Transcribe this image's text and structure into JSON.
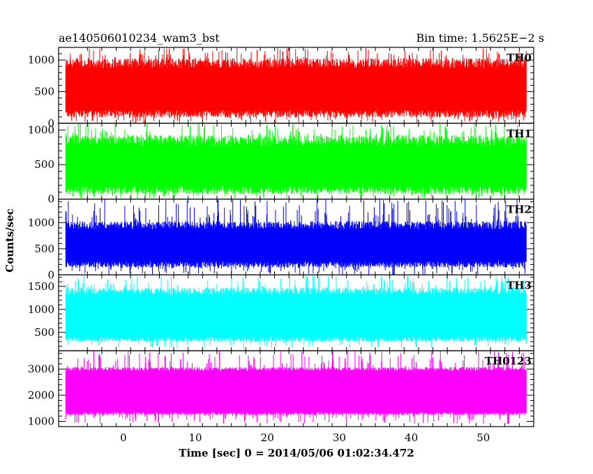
{
  "header": {
    "title": "ae140506010234_wam3_bst",
    "bin_time": "Bin time: 1.5625E−2 s"
  },
  "chart_data": {
    "type": "line",
    "title": "ae140506010234_wam3_bst",
    "subtitle": "Bin time: 1.5625E−2 s",
    "xlabel": "Time [sec] 0 = 2014/05/06 01:02:34.472",
    "ylabel": "Counts/sec",
    "xlim": [
      -9,
      57
    ],
    "x_data_range": [
      -8,
      56
    ],
    "x_ticks": [
      0,
      10,
      20,
      30,
      40,
      50
    ],
    "x_tick_labels": [
      "0",
      "10",
      "20",
      "30",
      "40",
      "50"
    ],
    "grid": false,
    "panels": [
      {
        "name": "TH0",
        "color": "#ff0000",
        "ylim": [
          0,
          1200
        ],
        "y_ticks": [
          0,
          500,
          1000
        ],
        "y_tick_labels": [
          "0",
          "500",
          "1000"
        ],
        "base_range": [
          150,
          950
        ],
        "spike_range": [
          0,
          1200
        ]
      },
      {
        "name": "TH1",
        "color": "#00ff00",
        "ylim": [
          0,
          1100
        ],
        "y_ticks": [
          0,
          500,
          1000
        ],
        "y_tick_labels": [
          "0",
          "500",
          "1000"
        ],
        "base_range": [
          130,
          850
        ],
        "spike_range": [
          0,
          1100
        ]
      },
      {
        "name": "TH2",
        "color": "#0000ff",
        "ylim": [
          0,
          1450
        ],
        "y_ticks": [
          0,
          500,
          1000
        ],
        "y_tick_labels": [
          "0",
          "500",
          "1000"
        ],
        "base_range": [
          200,
          950
        ],
        "spike_range": [
          0,
          1450
        ]
      },
      {
        "name": "TH3",
        "color": "#00ffff",
        "ylim": [
          100,
          1750
        ],
        "y_ticks": [
          500,
          1000,
          1500
        ],
        "y_tick_labels": [
          "500",
          "1000",
          "1500"
        ],
        "base_range": [
          350,
          1400
        ],
        "spike_range": [
          150,
          1750
        ]
      },
      {
        "name": "TH0123",
        "color": "#ff00ff",
        "ylim": [
          800,
          3700
        ],
        "y_ticks": [
          1000,
          2000,
          3000
        ],
        "y_tick_labels": [
          "1000",
          "2000",
          "3000"
        ],
        "base_range": [
          1300,
          3000
        ],
        "spike_range": [
          900,
          3700
        ]
      }
    ]
  }
}
